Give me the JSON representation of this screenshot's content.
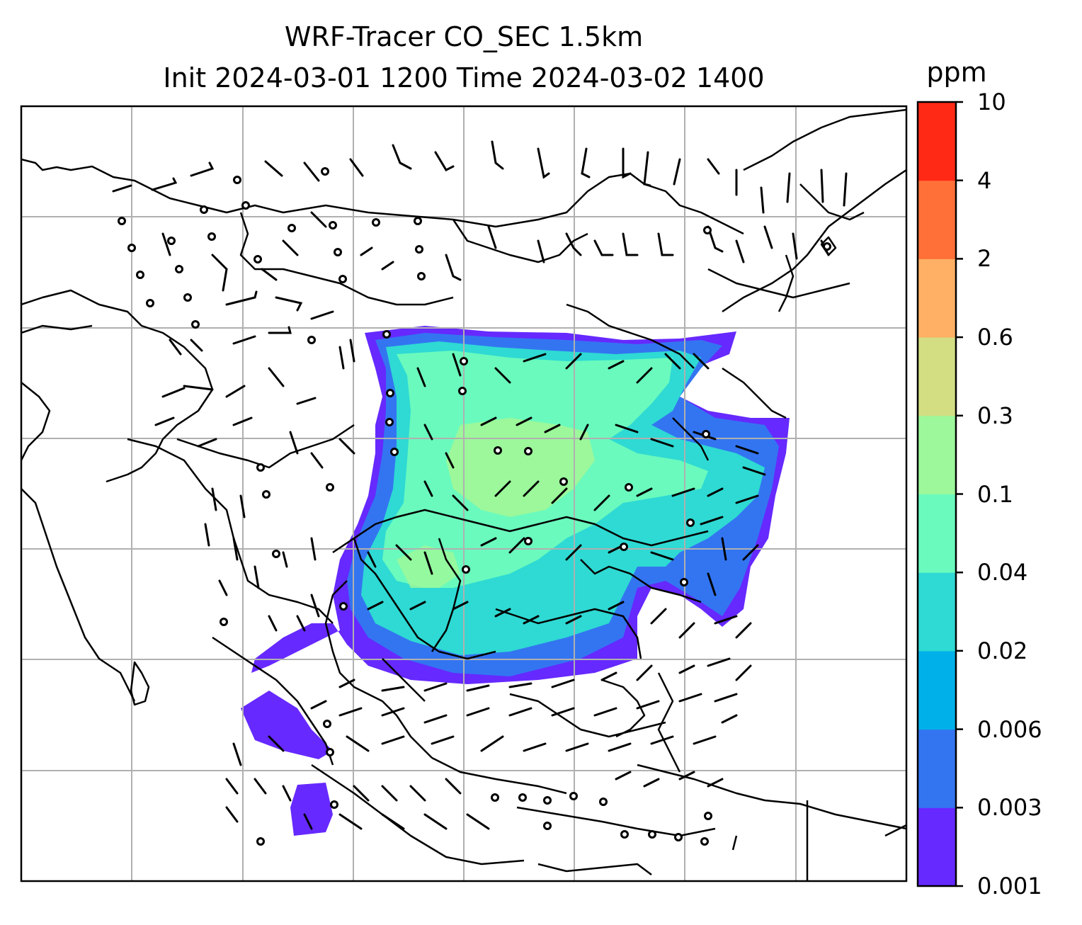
{
  "title": {
    "line1": "WRF-Tracer CO_SEC 1.5km",
    "line2": "Init 2024-03-01 1200 Time 2024-03-02 1400"
  },
  "colorbar": {
    "unit": "ppm",
    "ticks": [
      "0.001",
      "0.003",
      "0.006",
      "0.02",
      "0.04",
      "0.1",
      "0.3",
      "0.6",
      "2",
      "4",
      "10"
    ],
    "colors": [
      "#6629ff",
      "#3375f1",
      "#00b1e9",
      "#2edad3",
      "#6afabd",
      "#9cf89a",
      "#d3de83",
      "#ffb064",
      "#ff7038",
      "#ff2915"
    ]
  },
  "map": {
    "background": "#ffffff",
    "grid_color": "#b0b0b0",
    "coastline_color": "#000000",
    "symbols": [
      "wind-barbs",
      "calm-circles",
      "coastlines",
      "country-borders",
      "gridlines"
    ]
  }
}
